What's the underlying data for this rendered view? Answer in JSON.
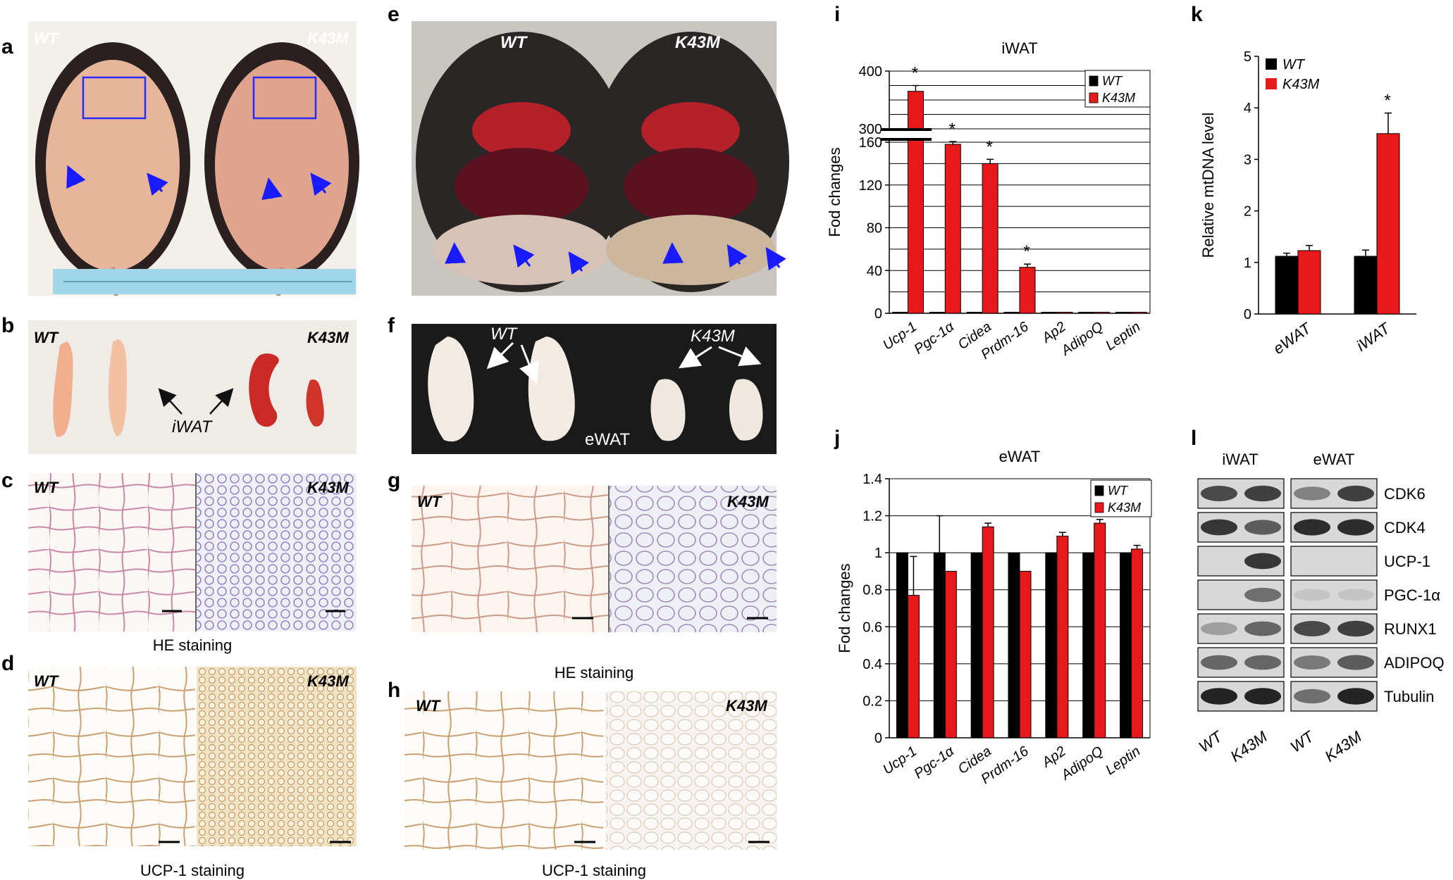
{
  "panels": {
    "a": {
      "letter": "a",
      "left": "WT",
      "right": "K43M"
    },
    "b": {
      "letter": "b",
      "left": "WT",
      "right": "K43M",
      "center": "iWAT"
    },
    "c": {
      "letter": "c",
      "left": "WT",
      "right": "K43M",
      "caption": "HE staining"
    },
    "d": {
      "letter": "d",
      "left": "WT",
      "right": "K43M",
      "caption": "UCP-1 staining"
    },
    "e": {
      "letter": "e",
      "left": "WT",
      "right": "K43M"
    },
    "f": {
      "letter": "f",
      "left": "WT",
      "right": "K43M",
      "center": "eWAT"
    },
    "g": {
      "letter": "g",
      "left": "WT",
      "right": "K43M",
      "caption": "HE staining"
    },
    "h": {
      "letter": "h",
      "left": "WT",
      "right": "K43M",
      "caption": "UCP-1 staining"
    },
    "i": {
      "letter": "i"
    },
    "j": {
      "letter": "j"
    },
    "k": {
      "letter": "k"
    },
    "l": {
      "letter": "l"
    }
  },
  "colors": {
    "wt": "#000000",
    "k43m": "#e8191b",
    "blot_bg": "#d9d9d9",
    "arrow": "#1a1aff"
  },
  "chart_data": [
    {
      "panel": "i",
      "type": "bar",
      "title": "iWAT",
      "ylabel": "Fod changes",
      "categories": [
        "Ucp-1",
        "Pgc-1α",
        "Cidea",
        "Prdm-16",
        "Ap2",
        "AdipoQ",
        "Leptin"
      ],
      "series": [
        {
          "name": "WT",
          "values": [
            1,
            1,
            1,
            1,
            1,
            1,
            1
          ]
        },
        {
          "name": "K43M",
          "values": [
            365,
            158,
            140,
            43,
            1,
            1,
            1
          ],
          "errors": [
            10,
            9,
            4,
            3,
            0,
            0,
            0
          ]
        }
      ],
      "significant": [
        "Ucp-1",
        "Pgc-1α",
        "Cidea",
        "Prdm-16"
      ],
      "yticks": [
        "0",
        "40",
        "80",
        "120",
        "160",
        "300",
        "400"
      ],
      "ylim": [
        0,
        400
      ],
      "axis_break": [
        170,
        290
      ],
      "legend": "top-right"
    },
    {
      "panel": "j",
      "type": "bar",
      "title": "eWAT",
      "ylabel": "Fod changes",
      "categories": [
        "Ucp-1",
        "Pgc-1α",
        "Cidea",
        "Prdm-16",
        "Ap2",
        "AdipoQ",
        "Leptin"
      ],
      "series": [
        {
          "name": "WT",
          "values": [
            1,
            1,
            1,
            1,
            1,
            1,
            1
          ],
          "errors": [
            0,
            0.2,
            0,
            0,
            0,
            0,
            0
          ]
        },
        {
          "name": "K43M",
          "values": [
            0.77,
            0.9,
            1.14,
            0.9,
            1.09,
            1.16,
            1.02
          ],
          "errors": [
            0.21,
            0,
            0.02,
            0,
            0.02,
            0.02,
            0.02
          ]
        }
      ],
      "yticks": [
        "0",
        "0.2",
        "0.4",
        "0.6",
        "0.8",
        "1",
        "1.2",
        "1.4"
      ],
      "ylim": [
        0,
        1.4
      ],
      "legend": "top-right"
    },
    {
      "panel": "k",
      "type": "bar",
      "ylabel": "Relative mtDNA level",
      "categories": [
        "eWAT",
        "iWAT"
      ],
      "series": [
        {
          "name": "WT",
          "values": [
            1.12,
            1.12
          ],
          "errors": [
            0.06,
            0.12
          ]
        },
        {
          "name": "K43M",
          "values": [
            1.23,
            3.5
          ],
          "errors": [
            0.1,
            0.4
          ]
        }
      ],
      "significant": [
        "iWAT"
      ],
      "yticks": [
        "0",
        "1",
        "2",
        "3",
        "4",
        "5"
      ],
      "ylim": [
        0,
        5
      ],
      "legend": "top-left"
    }
  ],
  "blot": {
    "headers": [
      "iWAT",
      "eWAT"
    ],
    "proteins": [
      "CDK6",
      "CDK4",
      "UCP-1",
      "PGC-1α",
      "RUNX1",
      "ADIPOQ",
      "Tubulin"
    ],
    "lanes": [
      "WT",
      "K43M",
      "WT",
      "K43M"
    ]
  },
  "star": "*"
}
